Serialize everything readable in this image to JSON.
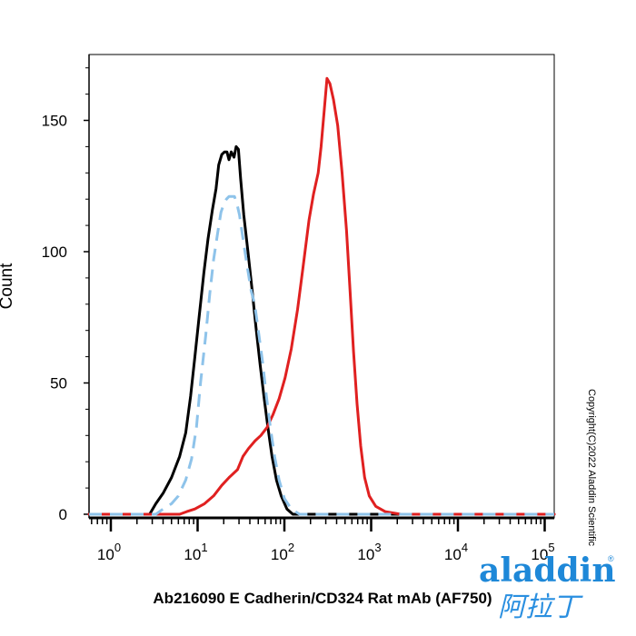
{
  "chart_data": {
    "type": "line",
    "title": "",
    "xlabel": "Ab216090 E Cadherin/CD324 Rat mAb (AF750)",
    "ylabel": "Count",
    "xscale": "log",
    "xlim": [
      0.5,
      150000
    ],
    "ylim": [
      -2,
      175
    ],
    "x_ticks": [
      {
        "base": "10",
        "exp": "0",
        "value": 1
      },
      {
        "base": "10",
        "exp": "1",
        "value": 10
      },
      {
        "base": "10",
        "exp": "2",
        "value": 100
      },
      {
        "base": "10",
        "exp": "3",
        "value": 1000
      },
      {
        "base": "10",
        "exp": "4",
        "value": 10000
      },
      {
        "base": "10",
        "exp": "5",
        "value": 100000
      }
    ],
    "y_ticks": [
      {
        "label": "0",
        "value": 0
      },
      {
        "label": "50",
        "value": 50
      },
      {
        "label": "100",
        "value": 100
      },
      {
        "label": "150",
        "value": 150
      }
    ],
    "grid": false,
    "legend": "none",
    "series": [
      {
        "color": "#000000",
        "style": "solid",
        "points": [
          [
            0.5,
            0
          ],
          [
            2.8,
            0
          ],
          [
            3.3,
            4
          ],
          [
            4.0,
            8
          ],
          [
            5.0,
            14
          ],
          [
            6.2,
            22
          ],
          [
            7.3,
            31
          ],
          [
            8.3,
            45
          ],
          [
            9.3,
            60
          ],
          [
            10.4,
            75
          ],
          [
            11.8,
            92
          ],
          [
            13.2,
            105
          ],
          [
            14.8,
            116
          ],
          [
            16.3,
            124
          ],
          [
            17.5,
            133
          ],
          [
            19.0,
            137
          ],
          [
            20.4,
            138
          ],
          [
            21.8,
            138
          ],
          [
            23.0,
            135
          ],
          [
            24.4,
            138
          ],
          [
            26.3,
            136
          ],
          [
            27.8,
            140
          ],
          [
            29.5,
            139
          ],
          [
            31.3,
            128
          ],
          [
            34.0,
            114
          ],
          [
            38.0,
            100
          ],
          [
            42.3,
            86
          ],
          [
            47.1,
            71
          ],
          [
            52.5,
            57
          ],
          [
            58.5,
            44
          ],
          [
            64.6,
            33
          ],
          [
            72.0,
            22
          ],
          [
            81.0,
            13
          ],
          [
            92.0,
            7
          ],
          [
            107,
            2
          ],
          [
            125,
            0
          ],
          [
            150000,
            0
          ]
        ]
      },
      {
        "color": "#e02020",
        "style": "solid",
        "points": [
          [
            0.5,
            0
          ],
          [
            6.2,
            0
          ],
          [
            7.5,
            1
          ],
          [
            9.3,
            2
          ],
          [
            12.0,
            4
          ],
          [
            15.3,
            7
          ],
          [
            19.0,
            11
          ],
          [
            23.1,
            14
          ],
          [
            28.8,
            17
          ],
          [
            33.3,
            22
          ],
          [
            38.5,
            25
          ],
          [
            46.0,
            28
          ],
          [
            53.6,
            30
          ],
          [
            63.0,
            33
          ],
          [
            74.0,
            38
          ],
          [
            87.0,
            44
          ],
          [
            102,
            52
          ],
          [
            120,
            63
          ],
          [
            142,
            78
          ],
          [
            164,
            94
          ],
          [
            192,
            112
          ],
          [
            217,
            122
          ],
          [
            245,
            130
          ],
          [
            265,
            140
          ],
          [
            285,
            152
          ],
          [
            310,
            166
          ],
          [
            335,
            164
          ],
          [
            368,
            158
          ],
          [
            412,
            148
          ],
          [
            462,
            130
          ],
          [
            520,
            108
          ],
          [
            572,
            85
          ],
          [
            626,
            62
          ],
          [
            688,
            42
          ],
          [
            758,
            26
          ],
          [
            840,
            14
          ],
          [
            950,
            7
          ],
          [
            1130,
            3
          ],
          [
            1450,
            1
          ],
          [
            2200,
            0
          ],
          [
            150000,
            0
          ]
        ]
      },
      {
        "color": "#8ec3ea",
        "style": "dashed",
        "points": [
          [
            0.5,
            0
          ],
          [
            3.3,
            0
          ],
          [
            4.0,
            2
          ],
          [
            5.0,
            4
          ],
          [
            6.0,
            7
          ],
          [
            7.3,
            13
          ],
          [
            8.5,
            21
          ],
          [
            9.7,
            33
          ],
          [
            10.8,
            50
          ],
          [
            12.4,
            68
          ],
          [
            13.8,
            84
          ],
          [
            15.3,
            97
          ],
          [
            17.0,
            107
          ],
          [
            18.6,
            115
          ],
          [
            20.0,
            118
          ],
          [
            21.5,
            120
          ],
          [
            23.0,
            121
          ],
          [
            24.8,
            121
          ],
          [
            26.6,
            121
          ],
          [
            28.5,
            118
          ],
          [
            30.4,
            114
          ],
          [
            33.0,
            106
          ],
          [
            37.0,
            95
          ],
          [
            41.5,
            85
          ],
          [
            45.5,
            80
          ],
          [
            50.0,
            70
          ],
          [
            56.0,
            58
          ],
          [
            62.0,
            45
          ],
          [
            69.0,
            33
          ],
          [
            77.0,
            22
          ],
          [
            87.0,
            13
          ],
          [
            100,
            6
          ],
          [
            120,
            2
          ],
          [
            150,
            0
          ],
          [
            150000,
            0
          ]
        ]
      }
    ]
  },
  "copyright": "Copyright(C)2022 Aladdin Scientific",
  "logo": {
    "brand": "aladdin",
    "chinese": "阿拉丁",
    "reg": "®",
    "primary_color": "#1e88d8"
  }
}
